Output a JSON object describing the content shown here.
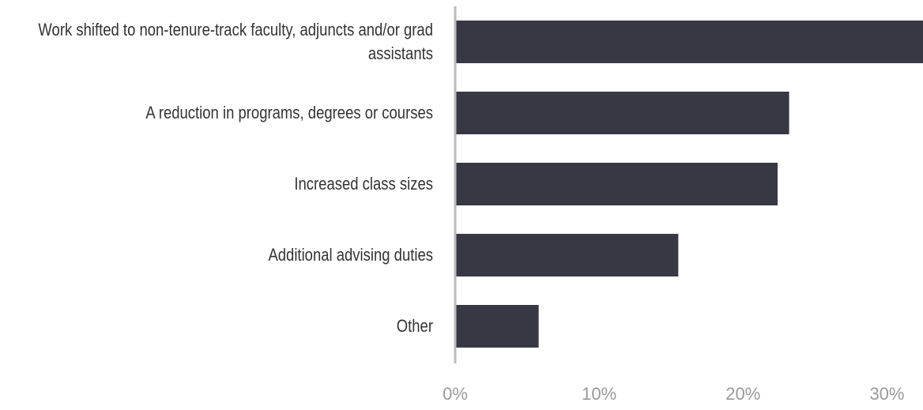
{
  "chart_data": {
    "type": "hbar",
    "categories": [
      "Work shifted to non-tenure-track faculty, adjuncts and/or grad assistants",
      "A reduction in programs, degrees or courses",
      "Increased class sizes",
      "Additional advising duties",
      "Other"
    ],
    "values": [
      33,
      23.2,
      22.4,
      15.5,
      5.8
    ],
    "color": "#383845",
    "xlim": [
      0,
      32.5
    ],
    "xticks": [
      {
        "value": 0,
        "label": "0%"
      },
      {
        "value": 10,
        "label": "10%"
      },
      {
        "value": 20,
        "label": "20%"
      },
      {
        "value": 30,
        "label": "30%"
      }
    ]
  }
}
